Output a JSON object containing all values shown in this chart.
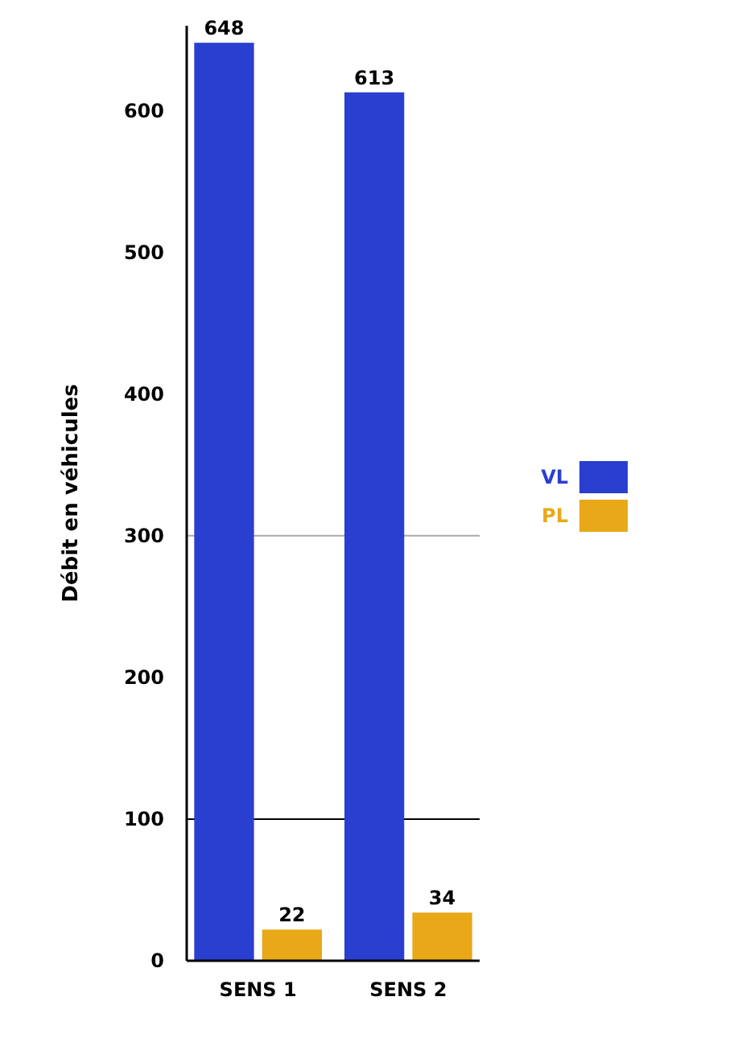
{
  "chart_data": {
    "type": "bar",
    "ylabel": "Débit en véhicules",
    "categories": [
      "SENS 1",
      "SENS 2"
    ],
    "series": [
      {
        "name": "VL",
        "color": "#2a3fd0",
        "values": [
          648,
          613
        ]
      },
      {
        "name": "PL",
        "color": "#e8a818",
        "values": [
          22,
          34
        ]
      }
    ],
    "ylim": [
      0,
      660
    ],
    "yticks": [
      0,
      100,
      200,
      300,
      400,
      500,
      600
    ],
    "data_labels": true,
    "legend": "right",
    "ref_lines": [
      {
        "axis": "y",
        "value": 100,
        "color": "#000000"
      },
      {
        "axis": "y",
        "value": 300,
        "color": "#aaaaaa"
      }
    ]
  }
}
